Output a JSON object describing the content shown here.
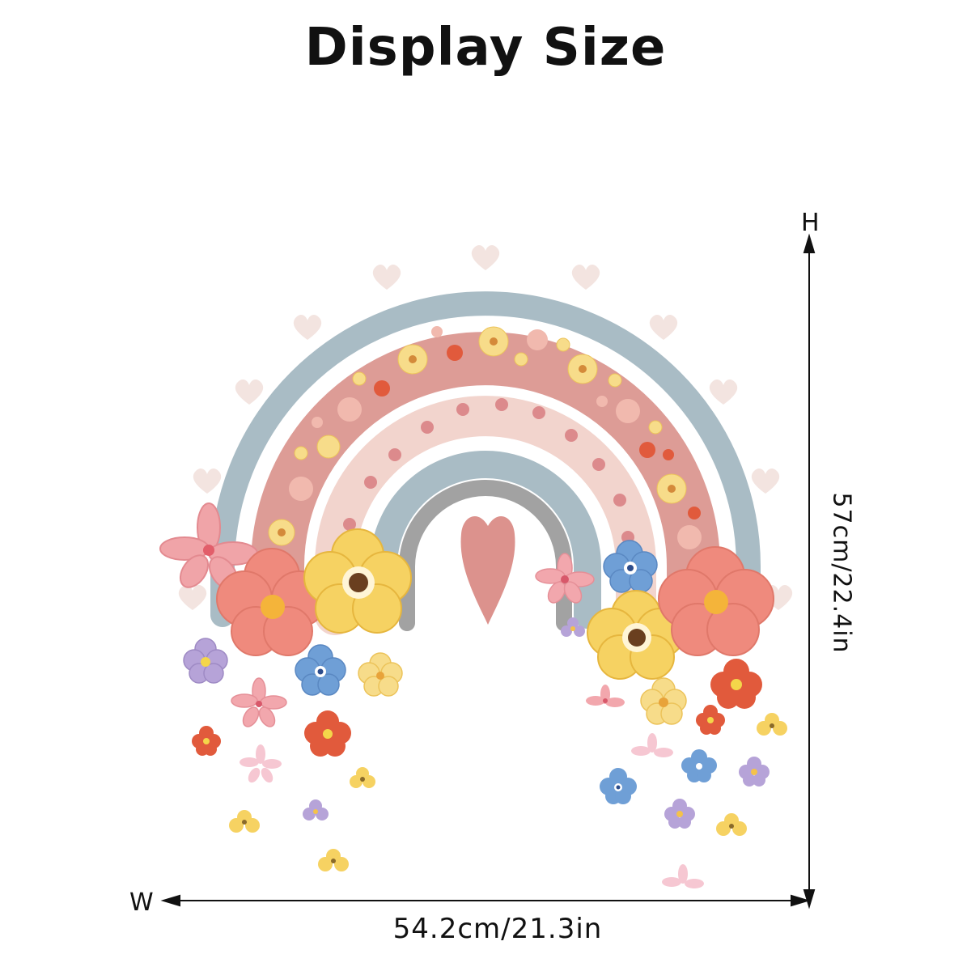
{
  "title": "Display Size",
  "dimensions": {
    "height_letter": "H",
    "width_letter": "W",
    "height_value": "57cm/22.4in",
    "width_value": "54.2cm/21.3in"
  },
  "colors": {
    "outer_band": "#a9bcc5",
    "pink_band": "#dd9c96",
    "light_band": "#f2d4cd",
    "inner_band": "#a9bcc5",
    "core_band": "#a2a2a2",
    "heart": "#dc928d",
    "small_hearts": "#f2e3df"
  },
  "illustration": "rainbow-with-flowers"
}
